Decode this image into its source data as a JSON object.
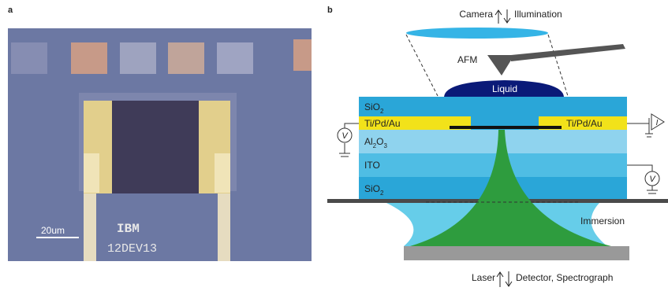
{
  "panel_a": {
    "label": "a",
    "scale_bar": "20um",
    "chip_text": [
      "IBM",
      "12DEV13"
    ]
  },
  "panel_b": {
    "label": "b",
    "top": {
      "left": "Camera",
      "right": "Illumination"
    },
    "afm": "AFM",
    "liquid": "Liquid",
    "layers": {
      "top_oxide": [
        "SiO",
        "2"
      ],
      "metal_left": "Ti/Pd/Au",
      "metal_right": "Ti/Pd/Au",
      "alumina": [
        "Al",
        "2",
        "O",
        "3"
      ],
      "ito": "ITO",
      "bottom_oxide": [
        "SiO",
        "2"
      ]
    },
    "meters": {
      "left": "V",
      "right_top": "I",
      "right_bottom": "V"
    },
    "immersion": "Immersion",
    "bottom": {
      "left": "Laser",
      "right": "Detector, Spectrograph"
    }
  }
}
